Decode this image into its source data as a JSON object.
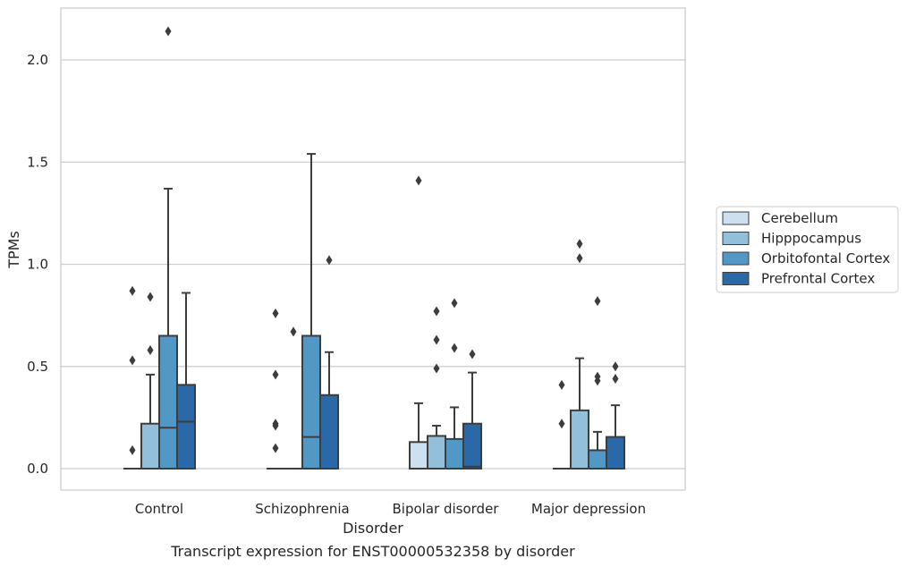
{
  "caption": "Transcript expression for ENST00000532358 by disorder",
  "chart_data": {
    "type": "box",
    "title": "",
    "xlabel": "Disorder",
    "ylabel": "TPMs",
    "ylim": [
      -0.105,
      2.25
    ],
    "yticks": [
      0.0,
      0.5,
      1.0,
      1.5,
      2.0
    ],
    "ytick_labels": [
      "0.0",
      "0.5",
      "1.0",
      "1.5",
      "2.0"
    ],
    "grid": "horizontal",
    "legend_placement": "right",
    "categories": [
      "Control",
      "Schizophrenia",
      "Bipolar disorder",
      "Major depression"
    ],
    "series": [
      {
        "name": "Cerebellum",
        "color": "#cde0f0",
        "boxes": [
          {
            "q1": 0.0,
            "median": 0.0,
            "q3": 0.0,
            "whisker_low": 0.0,
            "whisker_high": 0.0,
            "outliers": [
              0.09,
              0.53,
              0.87
            ]
          },
          {
            "q1": 0.0,
            "median": 0.0,
            "q3": 0.0,
            "whisker_low": 0.0,
            "whisker_high": 0.0,
            "outliers": [
              0.1,
              0.21,
              0.22,
              0.46,
              0.76
            ]
          },
          {
            "q1": 0.0,
            "median": 0.0,
            "q3": 0.13,
            "whisker_low": 0.0,
            "whisker_high": 0.32,
            "outliers": [
              1.41
            ]
          },
          {
            "q1": 0.0,
            "median": 0.0,
            "q3": 0.0,
            "whisker_low": 0.0,
            "whisker_high": 0.0,
            "outliers": [
              0.22,
              0.41
            ]
          }
        ]
      },
      {
        "name": "Hipppocampus",
        "color": "#94bfda",
        "boxes": [
          {
            "q1": 0.0,
            "median": 0.0,
            "q3": 0.22,
            "whisker_low": 0.0,
            "whisker_high": 0.46,
            "outliers": [
              0.58,
              0.84
            ]
          },
          {
            "q1": 0.0,
            "median": 0.0,
            "q3": 0.0,
            "whisker_low": 0.0,
            "whisker_high": 0.0,
            "outliers": [
              0.67
            ]
          },
          {
            "q1": 0.0,
            "median": 0.0,
            "q3": 0.16,
            "whisker_low": 0.0,
            "whisker_high": 0.21,
            "outliers": [
              0.49,
              0.63,
              0.77
            ]
          },
          {
            "q1": 0.0,
            "median": 0.0,
            "q3": 0.285,
            "whisker_low": 0.0,
            "whisker_high": 0.54,
            "outliers": [
              1.03,
              1.1
            ]
          }
        ]
      },
      {
        "name": "Orbitofontal Cortex",
        "color": "#5298c6",
        "boxes": [
          {
            "q1": 0.0,
            "median": 0.2,
            "q3": 0.65,
            "whisker_low": 0.0,
            "whisker_high": 1.37,
            "outliers": [
              2.14
            ]
          },
          {
            "q1": 0.0,
            "median": 0.155,
            "q3": 0.65,
            "whisker_low": 0.0,
            "whisker_high": 1.54,
            "outliers": []
          },
          {
            "q1": 0.0,
            "median": 0.0,
            "q3": 0.145,
            "whisker_low": 0.0,
            "whisker_high": 0.3,
            "outliers": [
              0.59,
              0.81
            ]
          },
          {
            "q1": 0.0,
            "median": 0.0,
            "q3": 0.09,
            "whisker_low": 0.0,
            "whisker_high": 0.18,
            "outliers": [
              0.43,
              0.45,
              0.82
            ]
          }
        ]
      },
      {
        "name": "Prefrontal Cortex",
        "color": "#2a68a7",
        "boxes": [
          {
            "q1": 0.0,
            "median": 0.23,
            "q3": 0.41,
            "whisker_low": 0.0,
            "whisker_high": 0.86,
            "outliers": []
          },
          {
            "q1": 0.0,
            "median": 0.0,
            "q3": 0.36,
            "whisker_low": 0.0,
            "whisker_high": 0.57,
            "outliers": [
              1.02
            ]
          },
          {
            "q1": 0.0,
            "median": 0.01,
            "q3": 0.22,
            "whisker_low": 0.0,
            "whisker_high": 0.47,
            "outliers": [
              0.56
            ]
          },
          {
            "q1": 0.0,
            "median": 0.0,
            "q3": 0.155,
            "whisker_low": 0.0,
            "whisker_high": 0.31,
            "outliers": [
              0.44,
              0.5
            ]
          }
        ]
      }
    ]
  }
}
